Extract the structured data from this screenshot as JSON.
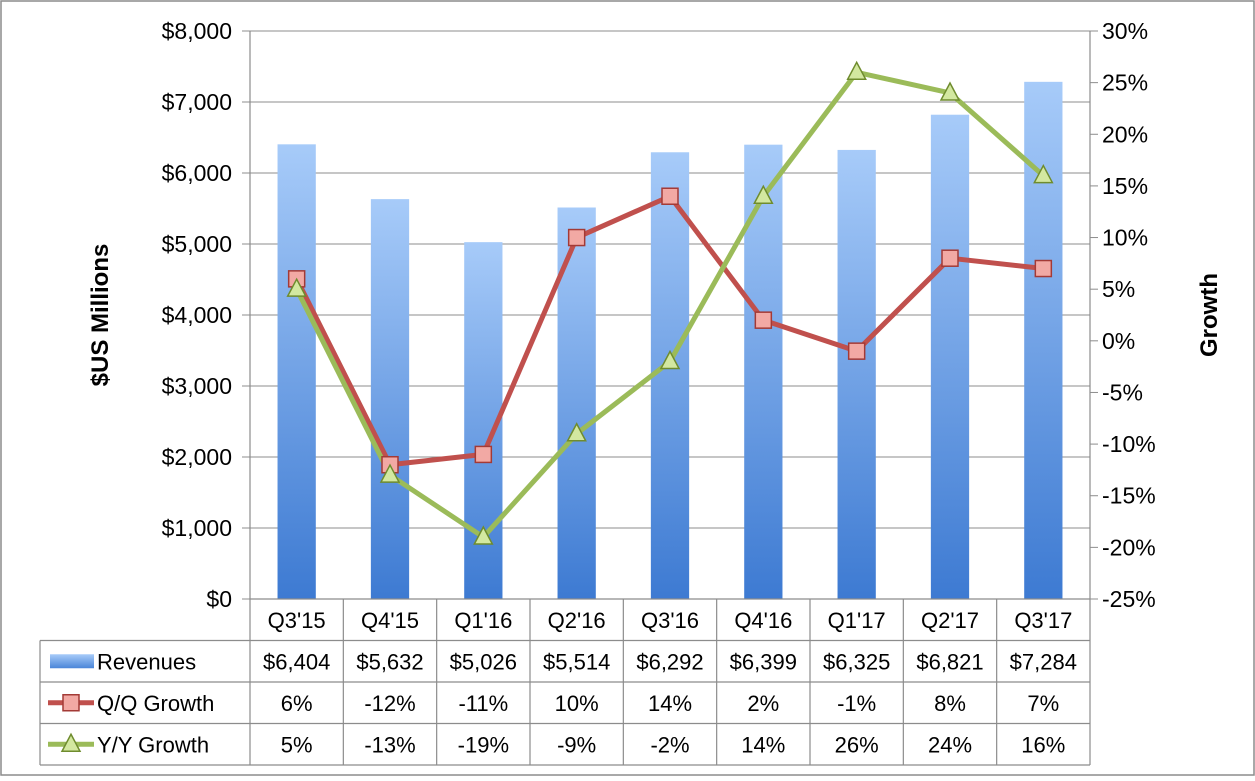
{
  "chart_data": {
    "type": "bar",
    "categories": [
      "Q3'15",
      "Q4'15",
      "Q1'16",
      "Q2'16",
      "Q3'16",
      "Q4'16",
      "Q1'17",
      "Q2'17",
      "Q3'17"
    ],
    "ylabel": "$US Millions",
    "y2label": "Growth",
    "ylim": [
      0,
      8000
    ],
    "y2lim": [
      -25,
      30
    ],
    "y_ticks": [
      "$0",
      "$1,000",
      "$2,000",
      "$3,000",
      "$4,000",
      "$5,000",
      "$6,000",
      "$7,000",
      "$8,000"
    ],
    "y2_ticks": [
      "-25%",
      "-20%",
      "-15%",
      "-10%",
      "-5%",
      "0%",
      "5%",
      "10%",
      "15%",
      "20%",
      "25%",
      "30%"
    ],
    "grid": true,
    "legend": "data-table",
    "series": [
      {
        "name": "Revenues",
        "type": "bar",
        "axis": "left",
        "values": [
          6404,
          5632,
          5026,
          5514,
          6292,
          6399,
          6325,
          6821,
          7284
        ],
        "labels": [
          "$6,404",
          "$5,632",
          "$5,026",
          "$5,514",
          "$6,292",
          "$6,399",
          "$6,325",
          "$6,821",
          "$7,284"
        ],
        "color": "#5b93de"
      },
      {
        "name": "Q/Q Growth",
        "type": "line",
        "axis": "right",
        "marker": "square",
        "values": [
          6,
          -12,
          -11,
          10,
          14,
          2,
          -1,
          8,
          7
        ],
        "labels": [
          "6%",
          "-12%",
          "-11%",
          "10%",
          "14%",
          "2%",
          "-1%",
          "8%",
          "7%"
        ],
        "color": "#c0504d"
      },
      {
        "name": "Y/Y Growth",
        "type": "line",
        "axis": "right",
        "marker": "triangle",
        "values": [
          5,
          -13,
          -19,
          -9,
          -2,
          14,
          26,
          24,
          16
        ],
        "labels": [
          "5%",
          "-13%",
          "-19%",
          "-9%",
          "-2%",
          "14%",
          "26%",
          "24%",
          "16%"
        ],
        "color": "#9bbb59"
      }
    ]
  }
}
